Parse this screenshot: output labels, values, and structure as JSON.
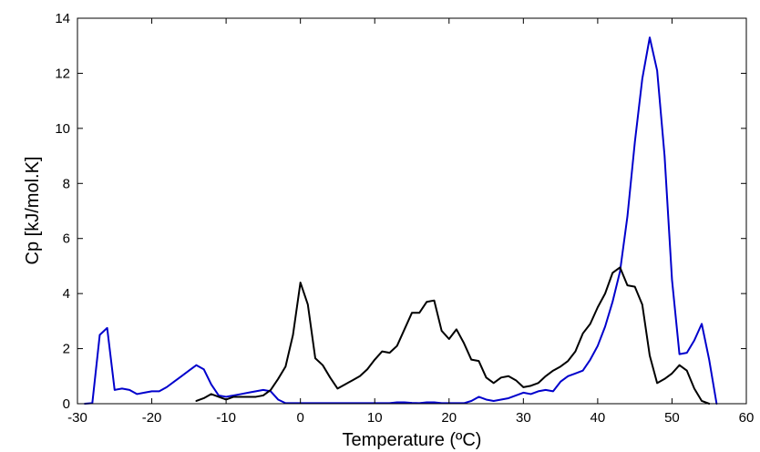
{
  "chart_data": {
    "type": "line",
    "title": "",
    "xlabel": "Temperature (ºC)",
    "ylabel": "Cp [kJ/mol.K]",
    "xlim": [
      -30,
      60
    ],
    "ylim": [
      0,
      14
    ],
    "xticks": [
      -30,
      -20,
      -10,
      0,
      10,
      20,
      30,
      40,
      50,
      60
    ],
    "yticks": [
      0,
      2,
      4,
      6,
      8,
      10,
      12,
      14
    ],
    "grid": false,
    "legend": "none",
    "series": [
      {
        "color": "#0000cc",
        "points": [
          [
            -29,
            0
          ],
          [
            -28,
            0.02
          ],
          [
            -27,
            2.5
          ],
          [
            -26,
            2.75
          ],
          [
            -25,
            0.5
          ],
          [
            -24,
            0.55
          ],
          [
            -23,
            0.5
          ],
          [
            -22,
            0.35
          ],
          [
            -21,
            0.4
          ],
          [
            -20,
            0.45
          ],
          [
            -19,
            0.45
          ],
          [
            -18,
            0.6
          ],
          [
            -17,
            0.8
          ],
          [
            -16,
            1.0
          ],
          [
            -15,
            1.2
          ],
          [
            -14,
            1.4
          ],
          [
            -13,
            1.25
          ],
          [
            -12,
            0.7
          ],
          [
            -11,
            0.3
          ],
          [
            -10,
            0.25
          ],
          [
            -9,
            0.3
          ],
          [
            -8,
            0.35
          ],
          [
            -7,
            0.4
          ],
          [
            -6,
            0.45
          ],
          [
            -5,
            0.5
          ],
          [
            -4,
            0.45
          ],
          [
            -3,
            0.15
          ],
          [
            -2,
            0.02
          ],
          [
            0,
            0.02
          ],
          [
            5,
            0.02
          ],
          [
            10,
            0.02
          ],
          [
            12,
            0.02
          ],
          [
            13,
            0.05
          ],
          [
            14,
            0.05
          ],
          [
            15,
            0.03
          ],
          [
            16,
            0.02
          ],
          [
            17,
            0.05
          ],
          [
            18,
            0.05
          ],
          [
            19,
            0.02
          ],
          [
            20,
            0.02
          ],
          [
            21,
            0.02
          ],
          [
            22,
            0.02
          ],
          [
            23,
            0.1
          ],
          [
            24,
            0.25
          ],
          [
            25,
            0.15
          ],
          [
            26,
            0.1
          ],
          [
            27,
            0.15
          ],
          [
            28,
            0.2
          ],
          [
            29,
            0.3
          ],
          [
            30,
            0.4
          ],
          [
            31,
            0.35
          ],
          [
            32,
            0.45
          ],
          [
            33,
            0.5
          ],
          [
            34,
            0.45
          ],
          [
            35,
            0.8
          ],
          [
            36,
            1.0
          ],
          [
            37,
            1.1
          ],
          [
            38,
            1.2
          ],
          [
            39,
            1.6
          ],
          [
            40,
            2.1
          ],
          [
            41,
            2.8
          ],
          [
            42,
            3.7
          ],
          [
            43,
            4.8
          ],
          [
            44,
            6.8
          ],
          [
            45,
            9.5
          ],
          [
            46,
            11.8
          ],
          [
            47,
            13.3
          ],
          [
            48,
            12.1
          ],
          [
            49,
            9.0
          ],
          [
            50,
            4.5
          ],
          [
            51,
            1.8
          ],
          [
            52,
            1.85
          ],
          [
            53,
            2.3
          ],
          [
            54,
            2.9
          ],
          [
            55,
            1.6
          ],
          [
            56,
            0
          ]
        ]
      },
      {
        "color": "#000000",
        "points": [
          [
            -14,
            0.1
          ],
          [
            -13,
            0.2
          ],
          [
            -12,
            0.35
          ],
          [
            -11,
            0.25
          ],
          [
            -10,
            0.15
          ],
          [
            -9,
            0.25
          ],
          [
            -8,
            0.25
          ],
          [
            -7,
            0.25
          ],
          [
            -6,
            0.25
          ],
          [
            -5,
            0.3
          ],
          [
            -4,
            0.5
          ],
          [
            -3,
            0.9
          ],
          [
            -2,
            1.35
          ],
          [
            -1,
            2.5
          ],
          [
            0,
            4.4
          ],
          [
            1,
            3.6
          ],
          [
            2,
            1.65
          ],
          [
            3,
            1.4
          ],
          [
            4,
            0.95
          ],
          [
            5,
            0.55
          ],
          [
            6,
            0.7
          ],
          [
            7,
            0.85
          ],
          [
            8,
            1.0
          ],
          [
            9,
            1.25
          ],
          [
            10,
            1.6
          ],
          [
            11,
            1.9
          ],
          [
            12,
            1.85
          ],
          [
            13,
            2.1
          ],
          [
            14,
            2.7
          ],
          [
            15,
            3.3
          ],
          [
            16,
            3.3
          ],
          [
            17,
            3.7
          ],
          [
            18,
            3.75
          ],
          [
            19,
            2.65
          ],
          [
            20,
            2.35
          ],
          [
            21,
            2.7
          ],
          [
            22,
            2.2
          ],
          [
            23,
            1.6
          ],
          [
            24,
            1.55
          ],
          [
            25,
            0.95
          ],
          [
            26,
            0.75
          ],
          [
            27,
            0.95
          ],
          [
            28,
            1.0
          ],
          [
            29,
            0.85
          ],
          [
            30,
            0.6
          ],
          [
            31,
            0.65
          ],
          [
            32,
            0.75
          ],
          [
            33,
            1.0
          ],
          [
            34,
            1.2
          ],
          [
            35,
            1.35
          ],
          [
            36,
            1.55
          ],
          [
            37,
            1.9
          ],
          [
            38,
            2.55
          ],
          [
            39,
            2.9
          ],
          [
            40,
            3.5
          ],
          [
            41,
            4.0
          ],
          [
            42,
            4.75
          ],
          [
            43,
            4.95
          ],
          [
            44,
            4.3
          ],
          [
            45,
            4.25
          ],
          [
            46,
            3.6
          ],
          [
            47,
            1.75
          ],
          [
            48,
            0.75
          ],
          [
            49,
            0.9
          ],
          [
            50,
            1.1
          ],
          [
            51,
            1.4
          ],
          [
            52,
            1.2
          ],
          [
            53,
            0.55
          ],
          [
            54,
            0.1
          ],
          [
            55,
            0
          ]
        ]
      }
    ]
  }
}
